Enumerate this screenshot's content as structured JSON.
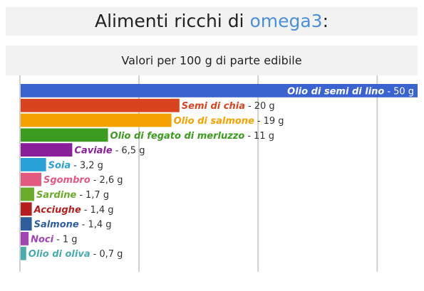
{
  "chart_data": {
    "type": "bar",
    "orientation": "horizontal",
    "title": [
      "Alimenti ricchi di ",
      "omega3",
      ":"
    ],
    "title_highlight_color": "#4a90d9",
    "subtitle": "Valori per 100 g di parte edibile",
    "label_separator": "-",
    "categories": [
      "Olio di semi di lino",
      "Semi di chia",
      "Olio di salmone",
      "Olio di fegato di merluzzo",
      "Caviale",
      "Soia",
      "Sgombro",
      "Sardine",
      "Acciughe",
      "Salmone",
      "Noci",
      "Olio di oliva"
    ],
    "values": [
      50,
      20,
      19,
      11,
      6.5,
      3.2,
      2.6,
      1.7,
      1.4,
      1.4,
      1,
      0.7
    ],
    "value_labels": [
      "50 g",
      "20 g",
      "19 g",
      "11 g",
      "6,5 g",
      "3,2 g",
      "2,6 g",
      "1,7 g",
      "1,4 g",
      "1,4 g",
      "1 g",
      "0,7 g"
    ],
    "colors": [
      "#3b63d0",
      "#d9441f",
      "#f5a200",
      "#3b9c20",
      "#8a1f9a",
      "#2aa0d8",
      "#e25a80",
      "#6aab2a",
      "#b51e1e",
      "#2f5e9c",
      "#a244b4",
      "#4aabab"
    ],
    "xlim": [
      0,
      50
    ],
    "gridlines": [
      0,
      15,
      30,
      45
    ]
  }
}
